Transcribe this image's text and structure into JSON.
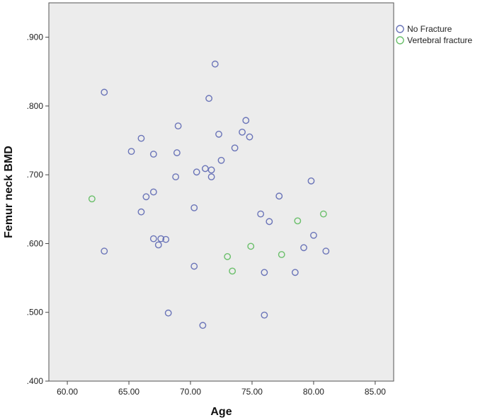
{
  "chart_data": {
    "type": "scatter",
    "title": "",
    "xlabel": "Age",
    "ylabel": "Femur neck BMD",
    "xlim": [
      58.5,
      86.5
    ],
    "ylim": [
      0.4,
      0.95
    ],
    "xticks": [
      60,
      65,
      70,
      75,
      80,
      85
    ],
    "xtick_labels": [
      "60.00",
      "65.00",
      "70.00",
      "75.00",
      "80.00",
      "85.00"
    ],
    "yticks": [
      0.4,
      0.5,
      0.6,
      0.7,
      0.8,
      0.9
    ],
    "ytick_labels": [
      ".400",
      ".500",
      ".600",
      ".700",
      ".800",
      ".900"
    ],
    "grid": false,
    "background": "#ececec",
    "legend_position": "right",
    "series": [
      {
        "name": "No Fracture",
        "color": "#6a74b8",
        "points": [
          [
            63.0,
            0.82
          ],
          [
            63.0,
            0.589
          ],
          [
            65.2,
            0.734
          ],
          [
            66.0,
            0.753
          ],
          [
            66.0,
            0.646
          ],
          [
            66.4,
            0.668
          ],
          [
            67.0,
            0.73
          ],
          [
            67.0,
            0.675
          ],
          [
            67.0,
            0.607
          ],
          [
            67.4,
            0.598
          ],
          [
            67.6,
            0.607
          ],
          [
            68.0,
            0.606
          ],
          [
            68.2,
            0.499
          ],
          [
            68.8,
            0.697
          ],
          [
            68.9,
            0.732
          ],
          [
            69.0,
            0.771
          ],
          [
            70.3,
            0.652
          ],
          [
            70.3,
            0.567
          ],
          [
            70.5,
            0.704
          ],
          [
            71.0,
            0.481
          ],
          [
            71.2,
            0.709
          ],
          [
            71.5,
            0.811
          ],
          [
            71.7,
            0.707
          ],
          [
            71.7,
            0.697
          ],
          [
            72.0,
            0.861
          ],
          [
            72.3,
            0.759
          ],
          [
            72.5,
            0.721
          ],
          [
            73.6,
            0.739
          ],
          [
            74.2,
            0.762
          ],
          [
            74.5,
            0.779
          ],
          [
            74.8,
            0.755
          ],
          [
            75.7,
            0.643
          ],
          [
            76.0,
            0.558
          ],
          [
            76.0,
            0.496
          ],
          [
            76.4,
            0.632
          ],
          [
            77.2,
            0.669
          ],
          [
            78.5,
            0.558
          ],
          [
            79.2,
            0.594
          ],
          [
            79.8,
            0.691
          ],
          [
            80.0,
            0.612
          ],
          [
            81.0,
            0.589
          ]
        ]
      },
      {
        "name": "Vertebral fracture",
        "color": "#6abf6a",
        "points": [
          [
            62.0,
            0.665
          ],
          [
            73.0,
            0.581
          ],
          [
            73.4,
            0.56
          ],
          [
            74.9,
            0.596
          ],
          [
            77.4,
            0.584
          ],
          [
            78.7,
            0.633
          ],
          [
            80.8,
            0.643
          ]
        ]
      }
    ]
  }
}
